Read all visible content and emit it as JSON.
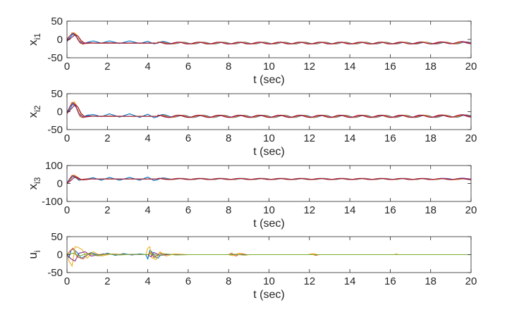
{
  "chart_data": [
    {
      "type": "line",
      "ylabel": "x",
      "ylabel_sub": "i1",
      "xlabel": "t (sec)",
      "xlim": [
        0,
        20
      ],
      "ylim": [
        -50,
        50
      ],
      "xticks": [
        "0",
        "2",
        "4",
        "6",
        "8",
        "10",
        "12",
        "14",
        "16",
        "18",
        "20"
      ],
      "yticks": [
        "-50",
        "0",
        "50"
      ],
      "series": [
        {
          "color": "#0072BD",
          "x": [
            0,
            0.15,
            0.3,
            0.45,
            0.6,
            0.8,
            1.0,
            1.3,
            1.7,
            2.1,
            2.6,
            3.1,
            3.6,
            4.0,
            4.3,
            4.7,
            5.5,
            7,
            9,
            11,
            13,
            15,
            17,
            19,
            20
          ],
          "y": [
            -6,
            5,
            15,
            8,
            -6,
            -12,
            -8,
            -4,
            -10,
            -4,
            -11,
            -4,
            -11,
            -5,
            -12,
            -8,
            -10,
            -10,
            -10,
            -10,
            -10,
            -10,
            -10,
            -10,
            -9
          ]
        },
        {
          "color": "#D95319",
          "x": [
            0,
            0.12,
            0.25,
            0.38,
            0.5,
            0.65,
            0.8,
            1.0,
            1.5,
            2.0,
            3.0,
            4.0,
            6,
            8,
            10,
            12,
            14,
            16,
            18,
            20
          ],
          "y": [
            -3,
            8,
            18,
            16,
            3,
            -10,
            -13,
            -9,
            -10,
            -9,
            -10,
            -10,
            -10,
            -10,
            -10,
            -10,
            -10,
            -10,
            -10,
            -9
          ]
        },
        {
          "color": "#EDB120",
          "x": [
            0,
            0.2,
            0.35,
            0.5,
            0.65,
            0.85,
            1.1,
            1.6,
            2.5,
            4,
            6,
            10,
            14,
            20
          ],
          "y": [
            2,
            14,
            19,
            12,
            -2,
            -10,
            -9,
            -10,
            -10,
            -10,
            -10,
            -10,
            -10,
            -9
          ]
        },
        {
          "color": "#7E2F8E",
          "x": [
            0,
            0.15,
            0.3,
            0.45,
            0.6,
            0.8,
            1.0,
            1.5,
            2.5,
            4,
            6,
            8,
            10,
            12,
            14,
            16,
            18,
            19,
            20
          ],
          "y": [
            0,
            10,
            17,
            10,
            -4,
            -11,
            -9,
            -10,
            -10,
            -10,
            -10,
            -10,
            -10,
            -10,
            -10,
            -10,
            -10,
            -9,
            -8
          ]
        },
        {
          "color": "#A2142F",
          "x": [
            0,
            0.25,
            0.4,
            0.55,
            0.7,
            0.9,
            1.2,
            2,
            4,
            8,
            12,
            16,
            20
          ],
          "y": [
            -4,
            6,
            13,
            9,
            -3,
            -11,
            -10,
            -10,
            -10,
            -10,
            -10,
            -10,
            -9
          ]
        }
      ],
      "oscillation": {
        "amplitude": 2.5,
        "period": 1.0,
        "from_x": 4.5
      }
    },
    {
      "type": "line",
      "ylabel": "x",
      "ylabel_sub": "i2",
      "xlabel": "t (sec)",
      "xlim": [
        0,
        20
      ],
      "ylim": [
        -50,
        50
      ],
      "xticks": [
        "0",
        "2",
        "4",
        "6",
        "8",
        "10",
        "12",
        "14",
        "16",
        "18",
        "20"
      ],
      "yticks": [
        "-50",
        "0",
        "50"
      ],
      "series": [
        {
          "color": "#0072BD",
          "x": [
            0,
            0.15,
            0.3,
            0.45,
            0.6,
            0.8,
            1.0,
            1.3,
            1.7,
            2.1,
            2.6,
            3.1,
            3.6,
            4.0,
            4.3,
            4.7,
            5.5,
            7,
            9,
            11,
            13,
            15,
            17,
            19,
            20
          ],
          "y": [
            -6,
            8,
            22,
            12,
            -8,
            -15,
            -10,
            -8,
            -14,
            -6,
            -15,
            -6,
            -16,
            -7,
            -17,
            -11,
            -13,
            -13,
            -13,
            -13,
            -13,
            -13,
            -13,
            -13,
            -12
          ]
        },
        {
          "color": "#D95319",
          "x": [
            0,
            0.12,
            0.25,
            0.38,
            0.5,
            0.65,
            0.8,
            1.0,
            1.5,
            2.0,
            3.0,
            4.0,
            6,
            8,
            10,
            12,
            14,
            16,
            18,
            20
          ],
          "y": [
            -4,
            12,
            26,
            24,
            5,
            -14,
            -17,
            -12,
            -13,
            -12,
            -13,
            -13,
            -13,
            -13,
            -13,
            -13,
            -13,
            -13,
            -13,
            -12
          ]
        },
        {
          "color": "#EDB120",
          "x": [
            0,
            0.2,
            0.35,
            0.5,
            0.65,
            0.85,
            1.1,
            1.6,
            2.5,
            4,
            6,
            10,
            14,
            20
          ],
          "y": [
            0,
            18,
            28,
            16,
            -4,
            -14,
            -12,
            -13,
            -13,
            -13,
            -13,
            -13,
            -13,
            -12
          ]
        },
        {
          "color": "#7E2F8E",
          "x": [
            0,
            0.15,
            0.3,
            0.45,
            0.6,
            0.8,
            1.0,
            1.5,
            2.5,
            4,
            6,
            8,
            10,
            12,
            14,
            16,
            18,
            19,
            20
          ],
          "y": [
            -2,
            14,
            24,
            14,
            -6,
            -15,
            -12,
            -13,
            -13,
            -13,
            -13,
            -13,
            -13,
            -13,
            -13,
            -13,
            -13,
            -12,
            -11
          ]
        },
        {
          "color": "#A2142F",
          "x": [
            0,
            0.25,
            0.4,
            0.55,
            0.7,
            0.9,
            1.2,
            2,
            4,
            8,
            12,
            16,
            20
          ],
          "y": [
            -5,
            10,
            20,
            12,
            -5,
            -15,
            -13,
            -13,
            -13,
            -13,
            -13,
            -13,
            -12
          ]
        }
      ],
      "oscillation": {
        "amplitude": 3.0,
        "period": 1.0,
        "from_x": 4.5
      }
    },
    {
      "type": "line",
      "ylabel": "x",
      "ylabel_sub": "i3",
      "xlabel": "t (sec)",
      "xlim": [
        0,
        20
      ],
      "ylim": [
        -100,
        100
      ],
      "xticks": [
        "0",
        "2",
        "4",
        "6",
        "8",
        "10",
        "12",
        "14",
        "16",
        "18",
        "20"
      ],
      "yticks": [
        "-100",
        "0",
        "100"
      ],
      "series": [
        {
          "color": "#0072BD",
          "x": [
            0,
            0.15,
            0.3,
            0.45,
            0.6,
            0.8,
            1.0,
            1.3,
            1.7,
            2.1,
            2.6,
            3.1,
            3.6,
            4.0,
            4.3,
            4.7,
            5.5,
            7,
            9,
            11,
            13,
            15,
            17,
            19,
            20
          ],
          "y": [
            2,
            20,
            40,
            30,
            18,
            22,
            26,
            32,
            18,
            34,
            18,
            34,
            18,
            36,
            16,
            28,
            25,
            25,
            25,
            25,
            25,
            25,
            25,
            25,
            24
          ]
        },
        {
          "color": "#D95319",
          "x": [
            0,
            0.12,
            0.25,
            0.38,
            0.5,
            0.65,
            0.8,
            1.0,
            1.5,
            2.0,
            3.0,
            4.0,
            6,
            8,
            10,
            12,
            14,
            16,
            18,
            20
          ],
          "y": [
            0,
            25,
            45,
            42,
            28,
            20,
            24,
            26,
            25,
            26,
            25,
            25,
            25,
            25,
            25,
            25,
            25,
            25,
            25,
            24
          ]
        },
        {
          "color": "#EDB120",
          "x": [
            0,
            0.2,
            0.35,
            0.5,
            0.65,
            0.85,
            1.1,
            1.6,
            2.5,
            4,
            6,
            10,
            14,
            20
          ],
          "y": [
            5,
            30,
            48,
            38,
            22,
            20,
            26,
            25,
            25,
            25,
            25,
            25,
            25,
            24
          ]
        },
        {
          "color": "#7E2F8E",
          "x": [
            0,
            0.15,
            0.3,
            0.45,
            0.6,
            0.8,
            1.0,
            1.5,
            2.5,
            4,
            6,
            8,
            10,
            12,
            14,
            16,
            18,
            19,
            20
          ],
          "y": [
            3,
            28,
            44,
            36,
            24,
            20,
            25,
            25,
            25,
            25,
            25,
            25,
            25,
            25,
            25,
            25,
            25,
            26,
            27
          ]
        },
        {
          "color": "#A2142F",
          "x": [
            0,
            0.25,
            0.4,
            0.55,
            0.7,
            0.9,
            1.2,
            2,
            4,
            8,
            12,
            16,
            20
          ],
          "y": [
            0,
            22,
            38,
            32,
            22,
            21,
            25,
            25,
            25,
            25,
            25,
            25,
            24
          ]
        }
      ],
      "oscillation": {
        "amplitude": 3.0,
        "period": 1.0,
        "from_x": 4.5
      }
    },
    {
      "type": "line",
      "ylabel": "u",
      "ylabel_sub": "i",
      "xlabel": "t (sec)",
      "xlim": [
        0,
        20
      ],
      "ylim": [
        -50,
        50
      ],
      "xticks": [
        "0",
        "2",
        "4",
        "6",
        "8",
        "10",
        "12",
        "14",
        "16",
        "18",
        "20"
      ],
      "yticks": [
        "-50",
        "0",
        "50"
      ],
      "series": [
        {
          "color": "#0072BD",
          "x": [
            0,
            0.1,
            0.2,
            0.3,
            0.5,
            0.7,
            0.9,
            1.2,
            1.6,
            2.0,
            2.4,
            2.8,
            3.2,
            3.6,
            3.9,
            4.0,
            4.1,
            4.2,
            4.35,
            4.5,
            4.7,
            5.0,
            5.5,
            20
          ],
          "y": [
            0,
            -8,
            12,
            16,
            6,
            -10,
            -4,
            6,
            -3,
            4,
            -2,
            3,
            -1,
            2,
            0,
            -12,
            12,
            8,
            -6,
            -10,
            3,
            0,
            0,
            0
          ]
        },
        {
          "color": "#D95319",
          "x": [
            0,
            0.15,
            0.3,
            0.5,
            0.8,
            1.1,
            1.5,
            2.0,
            3.0,
            4.0,
            4.15,
            4.3,
            4.6,
            5.0,
            8.0,
            8.15,
            8.35,
            8.6,
            8.9,
            11.95,
            12.1,
            12.3,
            12.5,
            20
          ],
          "y": [
            0,
            10,
            18,
            -6,
            -12,
            4,
            -3,
            2,
            0,
            0,
            8,
            -8,
            4,
            0,
            0,
            4,
            -4,
            3,
            0,
            0,
            2,
            -2,
            0,
            0
          ]
        },
        {
          "color": "#EDB120",
          "x": [
            0,
            0.1,
            0.25,
            0.4,
            0.55,
            0.75,
            1.0,
            1.3,
            1.7,
            2.2,
            3.0,
            3.9,
            4.0,
            4.1,
            4.2,
            4.4,
            4.6,
            4.9,
            5.3,
            6,
            8.0,
            8.2,
            8.5,
            8.8,
            9.0,
            12.0,
            12.2,
            12.4,
            16.2,
            16.3,
            16.4,
            20
          ],
          "y": [
            0,
            -18,
            -32,
            22,
            20,
            14,
            -10,
            8,
            -4,
            2,
            0,
            0,
            18,
            22,
            -8,
            -14,
            8,
            -4,
            2,
            0,
            0,
            -3,
            4,
            -2,
            0,
            0,
            3,
            0,
            0,
            2,
            0,
            0
          ]
        },
        {
          "color": "#7E2F8E",
          "x": [
            0,
            0.2,
            0.4,
            0.6,
            0.9,
            1.2,
            1.8,
            2.5,
            4.0,
            4.15,
            4.3,
            4.6,
            5.0,
            20
          ],
          "y": [
            0,
            -12,
            -18,
            4,
            8,
            -4,
            2,
            0,
            0,
            -6,
            6,
            -2,
            0,
            0
          ]
        },
        {
          "color": "#77AC30",
          "x": [
            0,
            0.3,
            0.6,
            1.0,
            1.5,
            2.0,
            2.6,
            3.2,
            4.0,
            4.2,
            4.5,
            4.9,
            5.4,
            6.0,
            8.0,
            8.3,
            8.7,
            9.0,
            20
          ],
          "y": [
            0,
            4,
            -4,
            3,
            -2,
            2,
            -1,
            1,
            0,
            3,
            -3,
            2,
            -1,
            0,
            0,
            1,
            -1,
            0,
            0
          ]
        }
      ],
      "oscillation": {
        "amplitude": 0,
        "period": 1.0,
        "from_x": 0
      }
    }
  ]
}
